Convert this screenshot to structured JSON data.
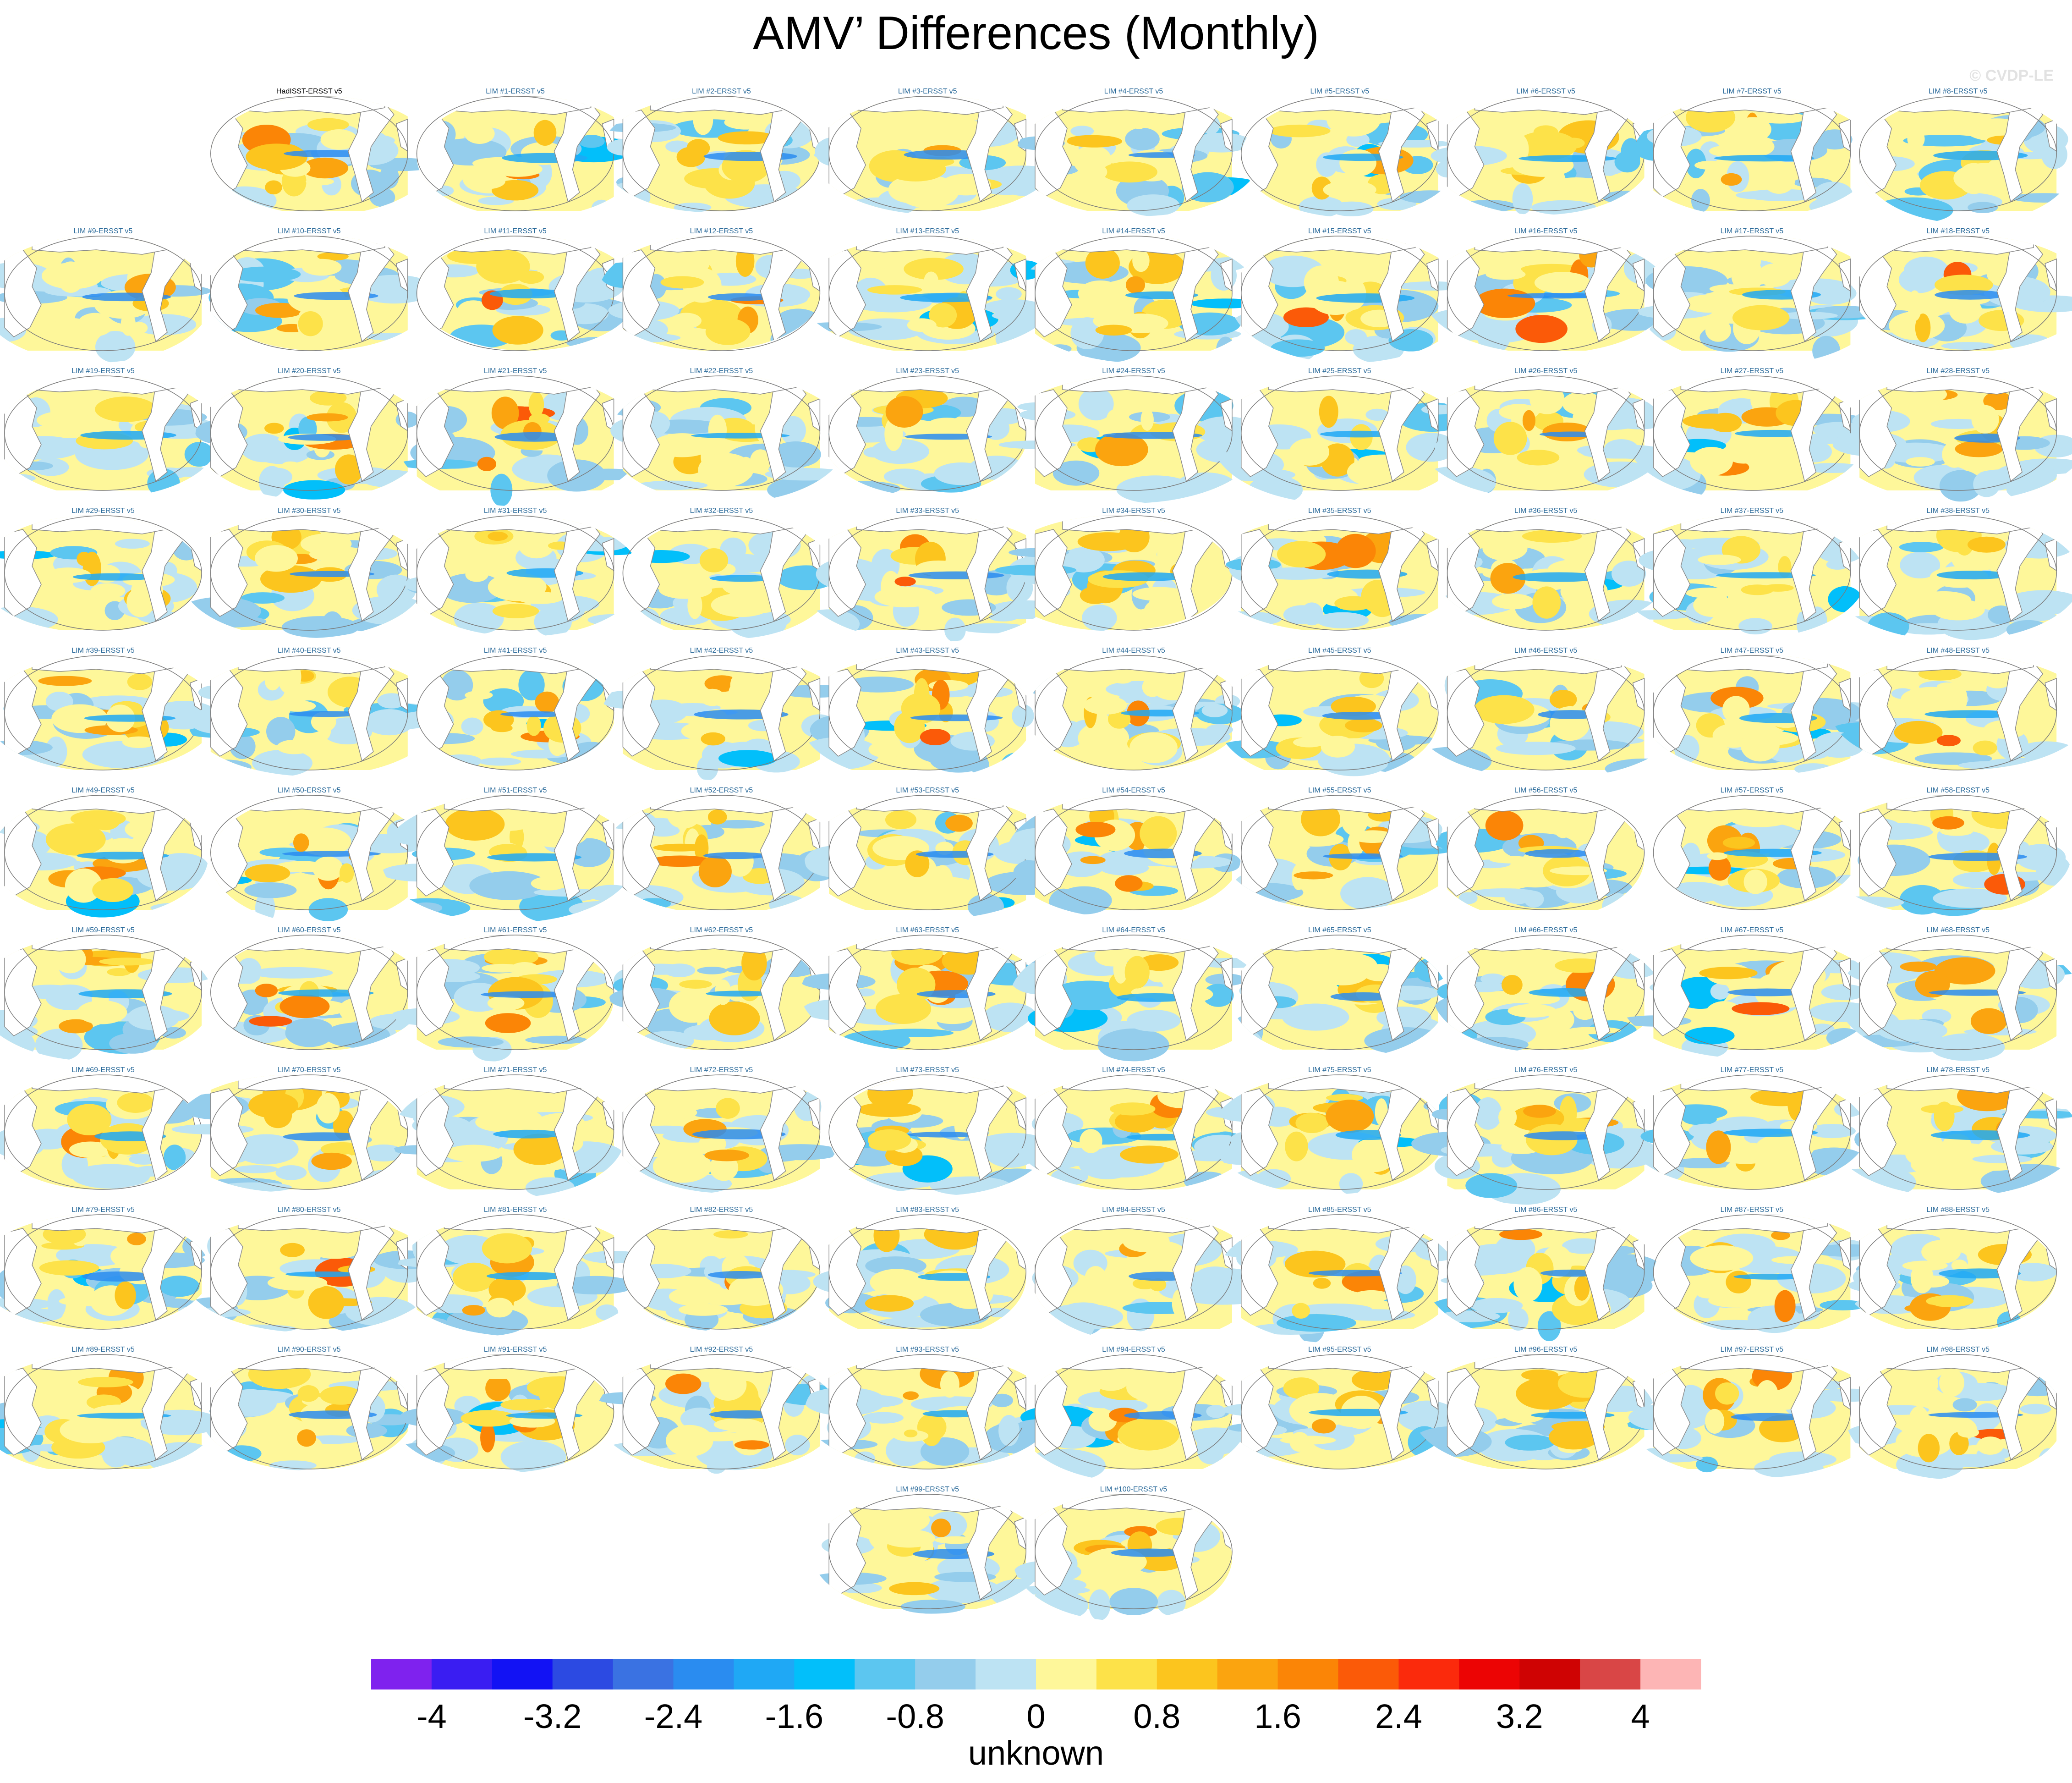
{
  "title": "AMV’ Differences (Monthly)",
  "credit": "© CVDP-LE",
  "chart_data": {
    "type": "heatmap",
    "description_kind": "grid of global map panels",
    "panels": [
      "HadISST-ERSST v5",
      "LIM #1-ERSST v5",
      "LIM #2-ERSST v5",
      "LIM #3-ERSST v5",
      "LIM #4-ERSST v5",
      "LIM #5-ERSST v5",
      "LIM #6-ERSST v5",
      "LIM #7-ERSST v5",
      "LIM #8-ERSST v5",
      "LIM #9-ERSST v5",
      "LIM #10-ERSST v5",
      "LIM #11-ERSST v5",
      "LIM #12-ERSST v5",
      "LIM #13-ERSST v5",
      "LIM #14-ERSST v5",
      "LIM #15-ERSST v5",
      "LIM #16-ERSST v5",
      "LIM #17-ERSST v5",
      "LIM #18-ERSST v5",
      "LIM #19-ERSST v5",
      "LIM #20-ERSST v5",
      "LIM #21-ERSST v5",
      "LIM #22-ERSST v5",
      "LIM #23-ERSST v5",
      "LIM #24-ERSST v5",
      "LIM #25-ERSST v5",
      "LIM #26-ERSST v5",
      "LIM #27-ERSST v5",
      "LIM #28-ERSST v5",
      "LIM #29-ERSST v5",
      "LIM #30-ERSST v5",
      "LIM #31-ERSST v5",
      "LIM #32-ERSST v5",
      "LIM #33-ERSST v5",
      "LIM #34-ERSST v5",
      "LIM #35-ERSST v5",
      "LIM #36-ERSST v5",
      "LIM #37-ERSST v5",
      "LIM #38-ERSST v5",
      "LIM #39-ERSST v5",
      "LIM #40-ERSST v5",
      "LIM #41-ERSST v5",
      "LIM #42-ERSST v5",
      "LIM #43-ERSST v5",
      "LIM #44-ERSST v5",
      "LIM #45-ERSST v5",
      "LIM #46-ERSST v5",
      "LIM #47-ERSST v5",
      "LIM #48-ERSST v5",
      "LIM #49-ERSST v5",
      "LIM #50-ERSST v5",
      "LIM #51-ERSST v5",
      "LIM #52-ERSST v5",
      "LIM #53-ERSST v5",
      "LIM #54-ERSST v5",
      "LIM #55-ERSST v5",
      "LIM #56-ERSST v5",
      "LIM #57-ERSST v5",
      "LIM #58-ERSST v5",
      "LIM #59-ERSST v5",
      "LIM #60-ERSST v5",
      "LIM #61-ERSST v5",
      "LIM #62-ERSST v5",
      "LIM #63-ERSST v5",
      "LIM #64-ERSST v5",
      "LIM #65-ERSST v5",
      "LIM #66-ERSST v5",
      "LIM #67-ERSST v5",
      "LIM #68-ERSST v5",
      "LIM #69-ERSST v5",
      "LIM #70-ERSST v5",
      "LIM #71-ERSST v5",
      "LIM #72-ERSST v5",
      "LIM #73-ERSST v5",
      "LIM #74-ERSST v5",
      "LIM #75-ERSST v5",
      "LIM #76-ERSST v5",
      "LIM #77-ERSST v5",
      "LIM #78-ERSST v5",
      "LIM #79-ERSST v5",
      "LIM #80-ERSST v5",
      "LIM #81-ERSST v5",
      "LIM #82-ERSST v5",
      "LIM #83-ERSST v5",
      "LIM #84-ERSST v5",
      "LIM #85-ERSST v5",
      "LIM #86-ERSST v5",
      "LIM #87-ERSST v5",
      "LIM #88-ERSST v5",
      "LIM #89-ERSST v5",
      "LIM #90-ERSST v5",
      "LIM #91-ERSST v5",
      "LIM #92-ERSST v5",
      "LIM #93-ERSST v5",
      "LIM #94-ERSST v5",
      "LIM #95-ERSST v5",
      "LIM #96-ERSST v5",
      "LIM #97-ERSST v5",
      "LIM #98-ERSST v5",
      "LIM #99-ERSST v5",
      "LIM #100-ERSST v5"
    ],
    "colorbar": {
      "levels": [
        -4.4,
        -4,
        -3.6,
        -3.2,
        -2.8,
        -2.4,
        -2,
        -1.6,
        -1.2,
        -0.8,
        -0.4,
        0,
        0.4,
        0.8,
        1.2,
        1.6,
        2,
        2.4,
        2.8,
        3.2,
        3.6,
        4,
        4.4
      ],
      "colors": [
        "#7f22ee",
        "#3a1df2",
        "#1212f4",
        "#2c4ae2",
        "#3a72e2",
        "#2a8cf0",
        "#1fa8f5",
        "#02bffa",
        "#5cc6f0",
        "#94cdec",
        "#bde3f3",
        "#fef79a",
        "#fde249",
        "#fcc51e",
        "#fba40f",
        "#fb8506",
        "#fb5a08",
        "#fb2a0c",
        "#ec0404",
        "#cf0303",
        "#d94646",
        "#fdb5b5"
      ],
      "tick_labels": [
        "-4",
        "-3.2",
        "-2.4",
        "-1.6",
        "-0.8",
        "0",
        "0.8",
        "1.6",
        "2.4",
        "3.2",
        "4"
      ],
      "unit_label": "unknown"
    }
  }
}
